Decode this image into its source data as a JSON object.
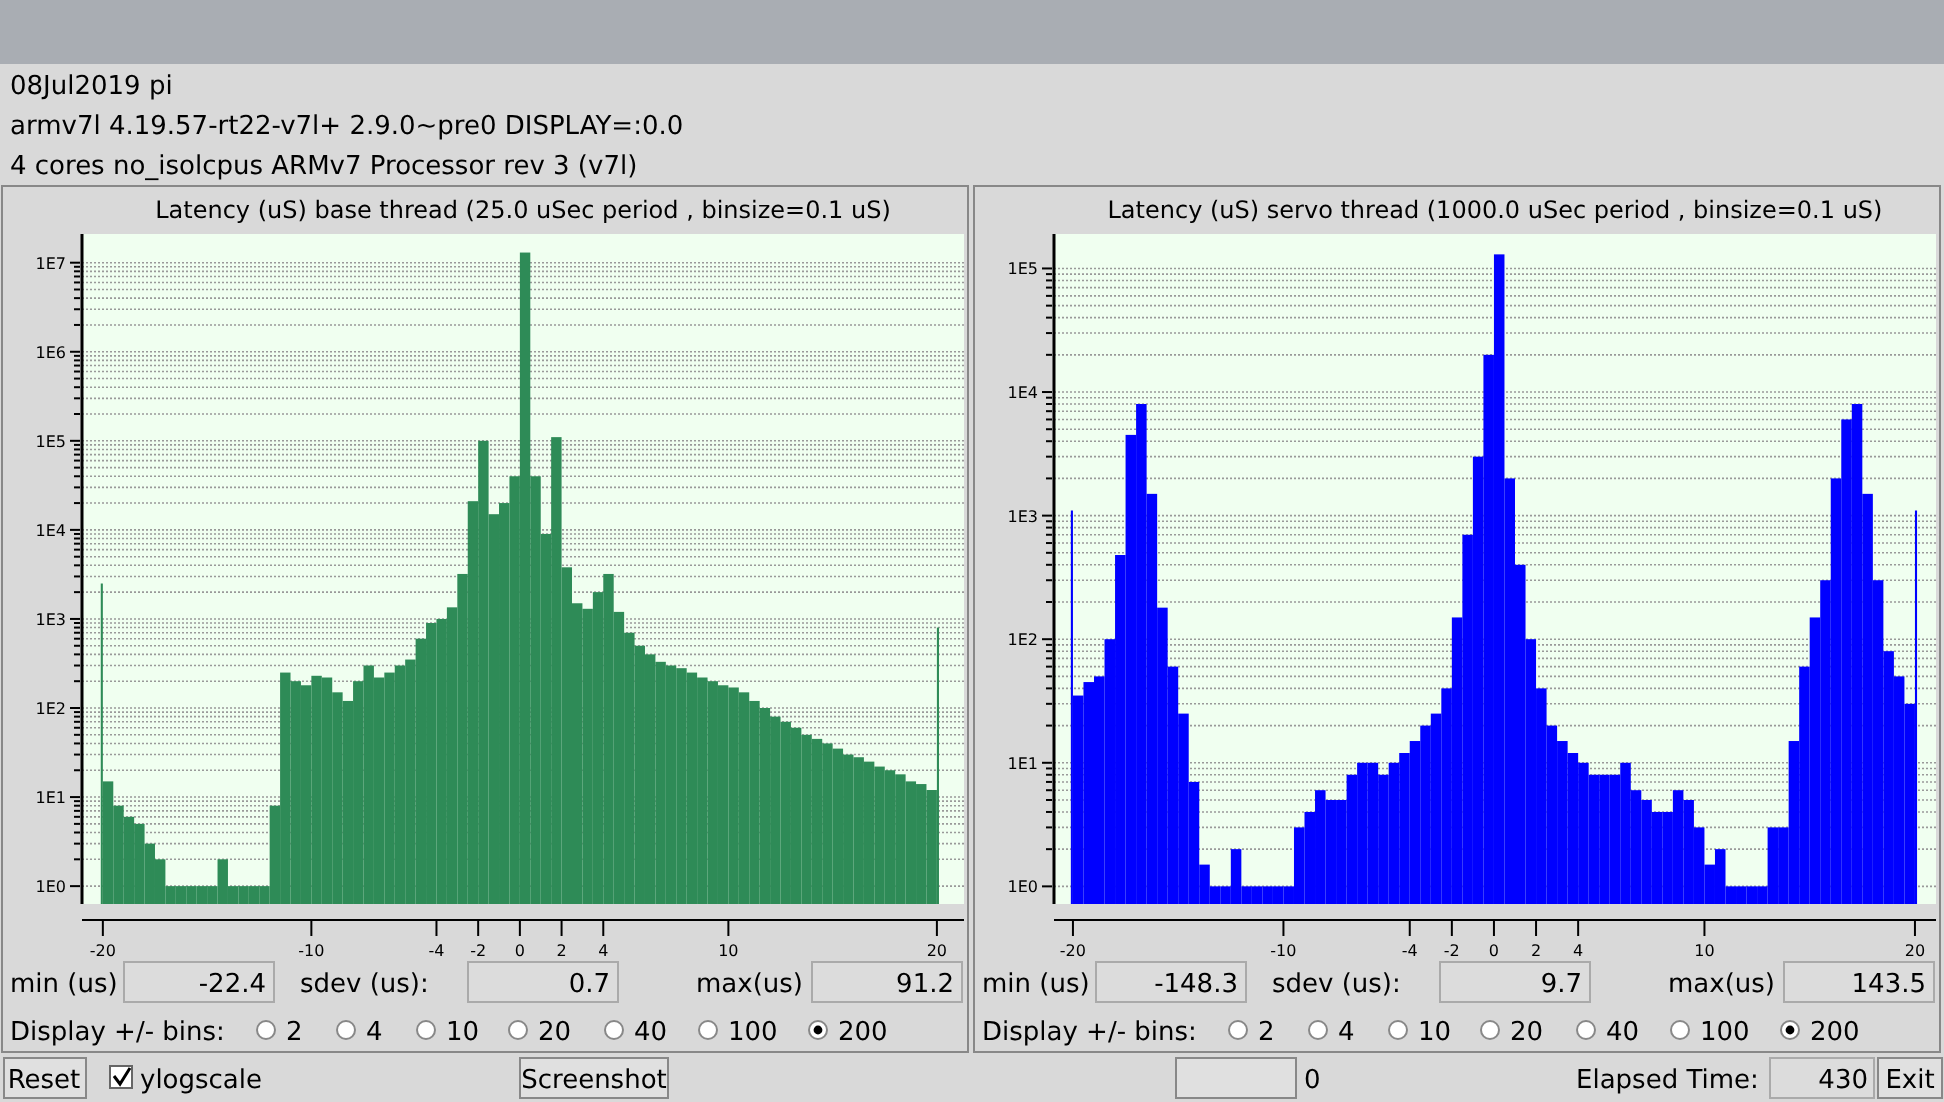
{
  "chart_data": [
    {
      "type": "histogram",
      "title": "Latency (uS) base thread (25.0 uSec period , binsize=0.1 uS)",
      "color": "#2e8b57",
      "log": "y",
      "grid": "y",
      "bins": [
        -20.1,
        -20,
        -19.5,
        -19,
        -18.5,
        -18,
        -17.5,
        -17,
        -16.5,
        -16,
        -15.5,
        -15,
        -14.5,
        -14,
        -13.5,
        -13,
        -12.5,
        -12,
        -11.5,
        -11,
        -10.5,
        -10,
        -9.5,
        -9,
        -8.5,
        -8,
        -7.5,
        -7,
        -6.5,
        -6,
        -5.5,
        -5,
        -4.5,
        -4,
        -3.5,
        -3,
        -2.5,
        -2,
        -1.5,
        -1,
        -0.5,
        0,
        0.5,
        1,
        1.5,
        2,
        2.5,
        3,
        3.5,
        4,
        4.5,
        5,
        5.5,
        6,
        6.5,
        7,
        7.5,
        8,
        8.5,
        9,
        9.5,
        10,
        10.5,
        11,
        11.5,
        12,
        12.5,
        13,
        13.5,
        14,
        14.5,
        15,
        15.5,
        16,
        16.5,
        17,
        17.5,
        18,
        18.5,
        19,
        19.5,
        20,
        20.1
      ],
      "values": [
        2500,
        15,
        8,
        6,
        5,
        3,
        2,
        1,
        1,
        1,
        1,
        1,
        2,
        1,
        1,
        1,
        1,
        8,
        250,
        200,
        180,
        230,
        220,
        150,
        120,
        200,
        300,
        220,
        250,
        300,
        350,
        600,
        900,
        1000,
        1350,
        3200,
        21000,
        100000,
        15000,
        20000,
        40000,
        13000000,
        40000,
        9000,
        110000,
        3800,
        1500,
        1300,
        2000,
        3200,
        1200,
        700,
        500,
        400,
        330,
        300,
        280,
        250,
        220,
        200,
        180,
        170,
        150,
        120,
        100,
        80,
        70,
        60,
        50,
        45,
        40,
        35,
        30,
        28,
        25,
        22,
        20,
        18,
        15,
        14,
        12,
        800
      ],
      "xlim": [
        -21,
        21.3
      ],
      "xticks": [
        -20,
        -10,
        -4,
        -2,
        0,
        2,
        4,
        10,
        20
      ],
      "ylim": [
        0.63,
        21000000
      ],
      "yticks": [
        {
          "value": 1,
          "label": "1E0"
        },
        {
          "value": 2,
          "label": null
        },
        {
          "value": 3,
          "label": null
        },
        {
          "value": 4,
          "label": null
        },
        {
          "value": 5,
          "label": null
        },
        {
          "value": 6,
          "label": null
        },
        {
          "value": 7,
          "label": null
        },
        {
          "value": 8,
          "label": null
        },
        {
          "value": 9,
          "label": null
        },
        {
          "value": 10,
          "label": "1E1"
        },
        {
          "value": 20,
          "label": null
        },
        {
          "value": 30,
          "label": null
        },
        {
          "value": 40,
          "label": null
        },
        {
          "value": 50,
          "label": null
        },
        {
          "value": 60,
          "label": null
        },
        {
          "value": 70,
          "label": null
        },
        {
          "value": 80,
          "label": null
        },
        {
          "value": 90,
          "label": null
        },
        {
          "value": 100,
          "label": "1E2"
        },
        {
          "value": 200,
          "label": null
        },
        {
          "value": 300,
          "label": null
        },
        {
          "value": 400,
          "label": null
        },
        {
          "value": 500,
          "label": null
        },
        {
          "value": 600,
          "label": null
        },
        {
          "value": 700,
          "label": null
        },
        {
          "value": 800,
          "label": null
        },
        {
          "value": 900,
          "label": null
        },
        {
          "value": 1000,
          "label": "1E3"
        },
        {
          "value": 2000,
          "label": null
        },
        {
          "value": 3000,
          "label": null
        },
        {
          "value": 4000,
          "label": null
        },
        {
          "value": 5000,
          "label": null
        },
        {
          "value": 6000,
          "label": null
        },
        {
          "value": 7000,
          "label": null
        },
        {
          "value": 8000,
          "label": null
        },
        {
          "value": 9000,
          "label": null
        },
        {
          "value": 10000,
          "label": "1E4"
        },
        {
          "value": 20000,
          "label": null
        },
        {
          "value": 30000,
          "label": null
        },
        {
          "value": 40000,
          "label": null
        },
        {
          "value": 50000,
          "label": null
        },
        {
          "value": 60000,
          "label": null
        },
        {
          "value": 70000,
          "label": null
        },
        {
          "value": 80000,
          "label": null
        },
        {
          "value": 90000,
          "label": null
        },
        {
          "value": 100000,
          "label": "1E5"
        },
        {
          "value": 200000,
          "label": null
        },
        {
          "value": 300000,
          "label": null
        },
        {
          "value": 400000,
          "label": null
        },
        {
          "value": 500000,
          "label": null
        },
        {
          "value": 600000,
          "label": null
        },
        {
          "value": 700000,
          "label": null
        },
        {
          "value": 800000,
          "label": null
        },
        {
          "value": 900000,
          "label": null
        },
        {
          "value": 1000000,
          "label": "1E6"
        },
        {
          "value": 2000000,
          "label": null
        },
        {
          "value": 3000000,
          "label": null
        },
        {
          "value": 4000000,
          "label": null
        },
        {
          "value": 5000000,
          "label": null
        },
        {
          "value": 6000000,
          "label": null
        },
        {
          "value": 7000000,
          "label": null
        },
        {
          "value": 8000000,
          "label": null
        },
        {
          "value": 9000000,
          "label": null
        },
        {
          "value": 10000000,
          "label": "1E7"
        }
      ],
      "annotations": [
        "min (us)",
        "-22.4",
        "sdev (us):",
        "0.7",
        "max(us)",
        "91.2",
        "Display +/- bins:",
        "2",
        "4",
        "10",
        "20",
        "40",
        "100",
        "200"
      ]
    },
    {
      "type": "histogram",
      "title": "Latency (uS) servo thread (1000.0 uSec period , binsize=0.1 uS)",
      "color": "#0000ff",
      "log": "y",
      "grid": "y",
      "bins": [
        -20.1,
        -20,
        -19.5,
        -19,
        -18.5,
        -18,
        -17.5,
        -17,
        -16.5,
        -16,
        -15.5,
        -15,
        -14.5,
        -14,
        -13.5,
        -13,
        -12.5,
        -12,
        -11.5,
        -11,
        -10.5,
        -10,
        -9.5,
        -9,
        -8.5,
        -8,
        -7.5,
        -7,
        -6.5,
        -6,
        -5.5,
        -5,
        -4.5,
        -4,
        -3.5,
        -3,
        -2.5,
        -2,
        -1.5,
        -1,
        -0.5,
        0,
        0.5,
        1,
        1.5,
        2,
        2.5,
        3,
        3.5,
        4,
        4.5,
        5,
        5.5,
        6,
        6.5,
        7,
        7.5,
        8,
        8.5,
        9,
        9.5,
        10,
        10.5,
        11,
        11.5,
        12,
        12.5,
        13,
        13.5,
        14,
        14.5,
        15,
        15.5,
        16,
        16.5,
        17,
        17.5,
        18,
        18.5,
        19,
        19.5,
        20,
        20.1
      ],
      "values": [
        1100,
        35,
        45,
        50,
        100,
        480,
        4500,
        8000,
        1500,
        180,
        60,
        25,
        7,
        1.5,
        1,
        1,
        2,
        1,
        1,
        1,
        1,
        1,
        3,
        4,
        6,
        5,
        5,
        8,
        10,
        10,
        8,
        10,
        12,
        15,
        20,
        25,
        40,
        150,
        700,
        3000,
        20000,
        130000,
        2000,
        400,
        100,
        40,
        20,
        15,
        12,
        10,
        8,
        8,
        8,
        10,
        6,
        5,
        4,
        4,
        6,
        5,
        3,
        1.5,
        2,
        1,
        1,
        1,
        1,
        3,
        3,
        15,
        60,
        150,
        300,
        2000,
        6000,
        8000,
        1500,
        300,
        80,
        50,
        30,
        1100
      ],
      "xlim": [
        -20.9,
        21
      ],
      "xticks": [
        -20,
        -10,
        -4,
        -2,
        0,
        2,
        4,
        10,
        20
      ],
      "ylim": [
        0.72,
        190000
      ],
      "yticks": [
        {
          "value": 1,
          "label": "1E0"
        },
        {
          "value": 2,
          "label": null
        },
        {
          "value": 3,
          "label": null
        },
        {
          "value": 4,
          "label": null
        },
        {
          "value": 5,
          "label": null
        },
        {
          "value": 6,
          "label": null
        },
        {
          "value": 7,
          "label": null
        },
        {
          "value": 8,
          "label": null
        },
        {
          "value": 9,
          "label": null
        },
        {
          "value": 10,
          "label": "1E1"
        },
        {
          "value": 20,
          "label": null
        },
        {
          "value": 30,
          "label": null
        },
        {
          "value": 40,
          "label": null
        },
        {
          "value": 50,
          "label": null
        },
        {
          "value": 60,
          "label": null
        },
        {
          "value": 70,
          "label": null
        },
        {
          "value": 80,
          "label": null
        },
        {
          "value": 90,
          "label": null
        },
        {
          "value": 100,
          "label": "1E2"
        },
        {
          "value": 200,
          "label": null
        },
        {
          "value": 300,
          "label": null
        },
        {
          "value": 400,
          "label": null
        },
        {
          "value": 500,
          "label": null
        },
        {
          "value": 600,
          "label": null
        },
        {
          "value": 700,
          "label": null
        },
        {
          "value": 800,
          "label": null
        },
        {
          "value": 900,
          "label": null
        },
        {
          "value": 1000,
          "label": "1E3"
        },
        {
          "value": 2000,
          "label": null
        },
        {
          "value": 3000,
          "label": null
        },
        {
          "value": 4000,
          "label": null
        },
        {
          "value": 5000,
          "label": null
        },
        {
          "value": 6000,
          "label": null
        },
        {
          "value": 7000,
          "label": null
        },
        {
          "value": 8000,
          "label": null
        },
        {
          "value": 9000,
          "label": null
        },
        {
          "value": 10000,
          "label": "1E4"
        },
        {
          "value": 20000,
          "label": null
        },
        {
          "value": 30000,
          "label": null
        },
        {
          "value": 40000,
          "label": null
        },
        {
          "value": 50000,
          "label": null
        },
        {
          "value": 60000,
          "label": null
        },
        {
          "value": 70000,
          "label": null
        },
        {
          "value": 80000,
          "label": null
        },
        {
          "value": 90000,
          "label": null
        },
        {
          "value": 100000,
          "label": "1E5"
        }
      ],
      "annotations": [
        "min (us)",
        "-148.3",
        "sdev (us):",
        "9.7",
        "max(us)",
        "143.5",
        "Display +/- bins:",
        "2",
        "4",
        "10",
        "20",
        "40",
        "100",
        "200"
      ]
    },
    {
      "type": "other",
      "annotations": [
        "08Jul2019 pi",
        "armv7l  4.19.57-rt22-v7l+  2.9.0~pre0  DISPLAY=:0.0",
        "4 cores  no_isolcpus    ARMv7 Processor rev 3 (v7l)",
        "Reset",
        "ylogscale",
        "Screenshot",
        "0",
        "Elapsed Time:",
        "430",
        "Exit"
      ]
    }
  ]
}
